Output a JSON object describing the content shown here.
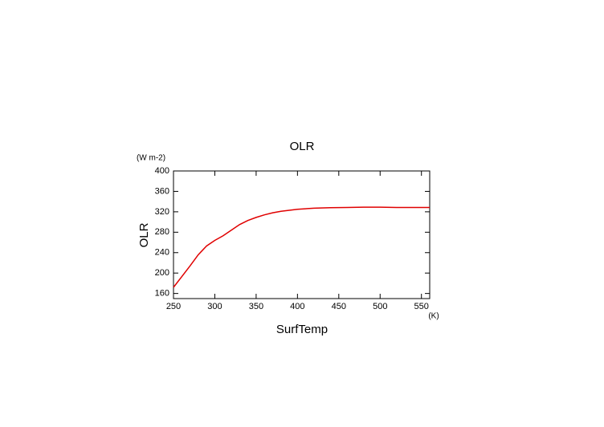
{
  "chart_data": {
    "type": "line",
    "title": "OLR",
    "y_unit": "(W m-2)",
    "y_label": "OLR",
    "x_unit": "(K)",
    "x_label": "SurfTemp",
    "x": [
      250,
      260,
      270,
      280,
      290,
      300,
      310,
      320,
      330,
      340,
      350,
      360,
      370,
      380,
      390,
      400,
      420,
      440,
      460,
      480,
      500,
      520,
      540,
      560
    ],
    "series": [
      {
        "color": "#e00000",
        "values": [
          172,
          193,
          214,
          236,
          253,
          264,
          273,
          284,
          295,
          303,
          309,
          314,
          318,
          321,
          323,
          325,
          327,
          328,
          328.5,
          329,
          329,
          328.5,
          328.5,
          328.5
        ]
      }
    ],
    "xlim": [
      250,
      560
    ],
    "xticks": [
      250,
      300,
      350,
      400,
      450,
      500,
      550
    ],
    "ylim": [
      150,
      400
    ],
    "yticks": [
      160,
      200,
      240,
      280,
      320,
      360,
      400
    ]
  }
}
